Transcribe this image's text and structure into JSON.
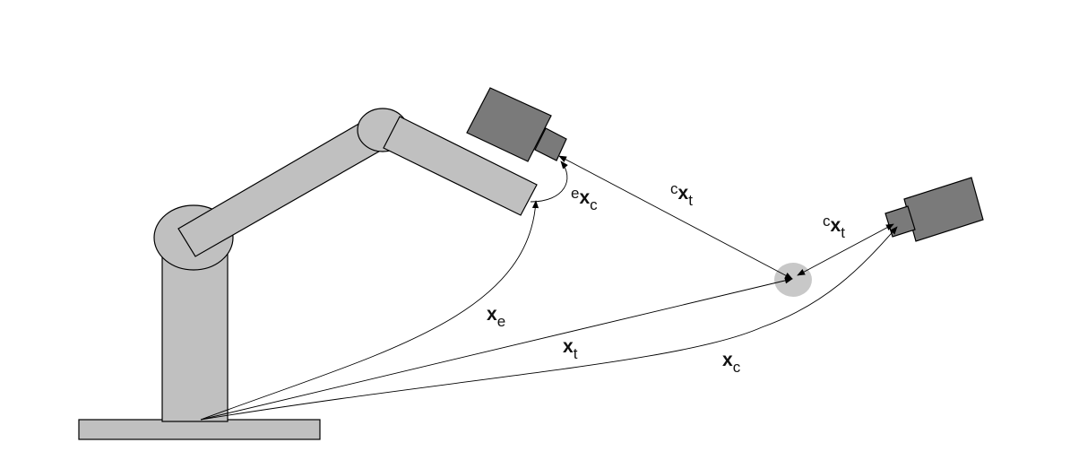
{
  "colors": {
    "robot_fill": "#c0c0c0",
    "camera_fill": "#7a7a7a",
    "target_fill": "#c8c8c8",
    "stroke": "#000000",
    "background": "#ffffff"
  },
  "labels": {
    "x_e": {
      "main": "x",
      "sub": "e"
    },
    "x_t": {
      "main": "x",
      "sub": "t"
    },
    "x_c": {
      "main": "x",
      "sub": "c"
    },
    "e_x_c": {
      "pre": "e",
      "main": "x",
      "sub": "c"
    },
    "c_x_t_1": {
      "pre": "c",
      "main": "x",
      "sub": "t"
    },
    "c_x_t_2": {
      "pre": "c",
      "main": "x",
      "sub": "t"
    }
  }
}
